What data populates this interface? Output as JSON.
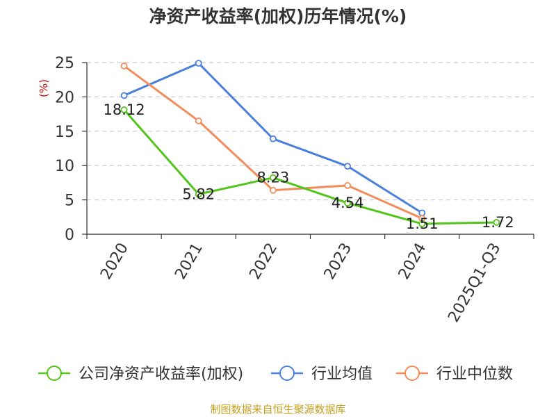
{
  "chart_data": {
    "type": "line",
    "title": "净资产收益率(加权)历年情况(%)",
    "xlabel": "",
    "ylabel": "(%)",
    "categories": [
      "2020",
      "2021",
      "2022",
      "2023",
      "2024",
      "2025Q1-Q3"
    ],
    "ylim": [
      0,
      25
    ],
    "yticks": [
      "0",
      "5",
      "10",
      "15",
      "20",
      "25"
    ],
    "grid": "horizontal-dashed",
    "legend_position": "bottom",
    "series": [
      {
        "name": "公司净资产收益率(加权)",
        "color": "#52c41a",
        "values": [
          18.12,
          5.82,
          8.23,
          4.54,
          1.51,
          1.72
        ],
        "labels": [
          "18.12",
          "5.82",
          "8.23",
          "4.54",
          "1.51",
          "1.72"
        ]
      },
      {
        "name": "行业均值",
        "color": "#4a7fdb",
        "values": [
          20.2,
          24.9,
          13.9,
          9.9,
          3.1,
          null
        ]
      },
      {
        "name": "行业中位数",
        "color": "#f28c5a",
        "values": [
          24.5,
          16.5,
          6.4,
          7.1,
          2.3,
          null
        ]
      }
    ]
  },
  "footer": "制图数据来自恒生聚源数据库"
}
